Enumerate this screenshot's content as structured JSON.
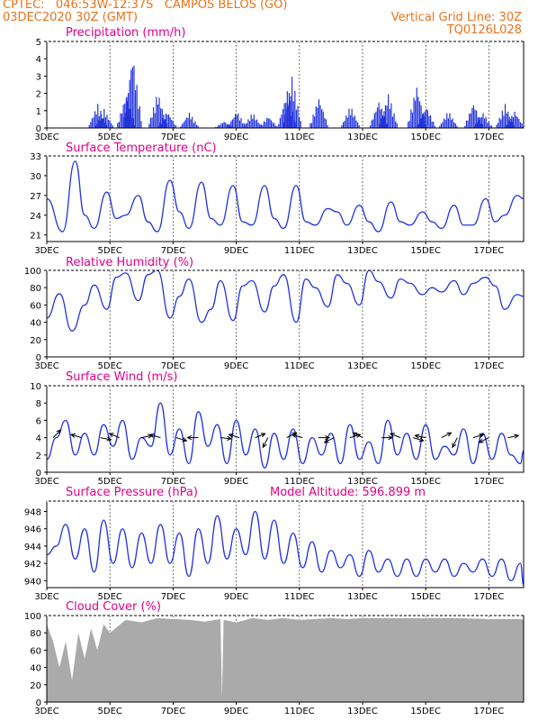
{
  "header": {
    "line1": "CPTEC:   046:53W-12:37S   CAMPOS BELOS (GO)",
    "line2_left": "03DEC2020 30Z (GMT)",
    "line2_right": "Vertical Grid Line: 30Z",
    "line3_right": "TQ0126L028"
  },
  "colors": {
    "header": "#e8731a",
    "title": "#e0008a",
    "line": "#2233dd",
    "cloud": "#aaaaaa"
  },
  "chart_data": [
    {
      "type": "bar",
      "title": "Precipitation (mm/h)",
      "ylim": [
        0,
        5
      ],
      "yticks": [
        "0",
        "1",
        "2",
        "3",
        "4",
        "5"
      ],
      "xticks": [
        "3DEC",
        "5DEC",
        "7DEC",
        "9DEC",
        "11DEC",
        "13DEC",
        "15DEC",
        "17DEC"
      ],
      "bursts": [
        {
          "day": 4.6,
          "peak": 1.4
        },
        {
          "day": 4.8,
          "peak": 1.1
        },
        {
          "day": 5.5,
          "peak": 2.0
        },
        {
          "day": 5.7,
          "peak": 4.4
        },
        {
          "day": 6.5,
          "peak": 2.1
        },
        {
          "day": 6.8,
          "peak": 1.0
        },
        {
          "day": 7.5,
          "peak": 0.9
        },
        {
          "day": 8.6,
          "peak": 0.4
        },
        {
          "day": 9.0,
          "peak": 1.0
        },
        {
          "day": 9.5,
          "peak": 0.9
        },
        {
          "day": 10.0,
          "peak": 0.7
        },
        {
          "day": 10.6,
          "peak": 2.2
        },
        {
          "day": 10.75,
          "peak": 3.0
        },
        {
          "day": 11.6,
          "peak": 1.8
        },
        {
          "day": 12.6,
          "peak": 1.3
        },
        {
          "day": 13.5,
          "peak": 1.6
        },
        {
          "day": 13.8,
          "peak": 2.0
        },
        {
          "day": 14.7,
          "peak": 2.5
        },
        {
          "day": 15.0,
          "peak": 1.3
        },
        {
          "day": 15.7,
          "peak": 1.0
        },
        {
          "day": 16.5,
          "peak": 1.5
        },
        {
          "day": 16.8,
          "peak": 0.9
        },
        {
          "day": 17.5,
          "peak": 1.4
        },
        {
          "day": 17.8,
          "peak": 1.0
        }
      ]
    },
    {
      "type": "line",
      "title": "Surface Temperature (nC)",
      "ylim": [
        20,
        33
      ],
      "yticks": [
        [
          "21",
          21
        ],
        [
          "24",
          24
        ],
        [
          "27",
          27
        ],
        [
          "30",
          30
        ],
        [
          "33",
          33
        ]
      ],
      "xticks": [
        "3DEC",
        "5DEC",
        "7DEC",
        "9DEC",
        "11DEC",
        "13DEC",
        "15DEC",
        "17DEC"
      ],
      "x": [
        3.0,
        3.5,
        3.9,
        4.2,
        4.5,
        4.9,
        5.2,
        5.5,
        5.9,
        6.2,
        6.5,
        6.9,
        7.2,
        7.5,
        7.9,
        8.2,
        8.5,
        8.9,
        9.2,
        9.5,
        9.9,
        10.2,
        10.5,
        10.9,
        11.2,
        11.5,
        11.9,
        12.2,
        12.5,
        12.9,
        13.2,
        13.5,
        13.9,
        14.2,
        14.5,
        14.9,
        15.2,
        15.5,
        15.9,
        16.2,
        16.5,
        16.9,
        17.2,
        17.5,
        17.9,
        18.1
      ],
      "values": [
        26.5,
        21.5,
        32.2,
        24.0,
        22.0,
        27.5,
        23.5,
        24.0,
        27.0,
        23.0,
        21.5,
        29.3,
        24.5,
        22.0,
        29.0,
        23.5,
        22.5,
        28.5,
        23.0,
        22.5,
        28.5,
        23.5,
        22.0,
        28.5,
        23.0,
        22.5,
        25.0,
        24.5,
        22.5,
        25.5,
        23.0,
        21.5,
        26.0,
        23.0,
        22.5,
        24.5,
        23.0,
        22.0,
        25.5,
        22.5,
        22.5,
        26.5,
        23.0,
        24.0,
        27.0,
        26.5
      ]
    },
    {
      "type": "line",
      "title": "Relative Humidity (%)",
      "ylim": [
        0,
        100
      ],
      "yticks": [
        [
          "0",
          0
        ],
        [
          "20",
          20
        ],
        [
          "40",
          40
        ],
        [
          "60",
          60
        ],
        [
          "80",
          80
        ],
        [
          "100",
          100
        ]
      ],
      "xticks": [
        "3DEC",
        "5DEC",
        "7DEC",
        "9DEC",
        "11DEC",
        "13DEC",
        "15DEC",
        "17DEC"
      ],
      "x": [
        3.0,
        3.4,
        3.8,
        4.2,
        4.5,
        4.9,
        5.2,
        5.5,
        5.9,
        6.2,
        6.5,
        6.9,
        7.2,
        7.5,
        7.9,
        8.2,
        8.5,
        8.9,
        9.2,
        9.5,
        9.9,
        10.2,
        10.5,
        10.9,
        11.2,
        11.5,
        11.9,
        12.2,
        12.5,
        12.9,
        13.2,
        13.5,
        13.9,
        14.2,
        14.5,
        14.9,
        15.2,
        15.5,
        15.9,
        16.2,
        16.5,
        16.9,
        17.2,
        17.5,
        17.9,
        18.1
      ],
      "values": [
        45,
        73,
        30,
        60,
        83,
        55,
        92,
        97,
        65,
        95,
        100,
        45,
        70,
        90,
        40,
        55,
        88,
        42,
        82,
        88,
        52,
        82,
        95,
        40,
        90,
        80,
        58,
        95,
        85,
        60,
        100,
        87,
        68,
        90,
        85,
        72,
        80,
        75,
        88,
        72,
        85,
        92,
        82,
        55,
        72,
        70
      ]
    },
    {
      "type": "line",
      "title": "Surface Wind (m/s)",
      "ylim": [
        0,
        10
      ],
      "yticks": [
        [
          "0",
          0
        ],
        [
          "2",
          2
        ],
        [
          "4",
          4
        ],
        [
          "6",
          6
        ],
        [
          "8",
          8
        ],
        [
          "10",
          10
        ]
      ],
      "xticks": [
        "3DEC",
        "5DEC",
        "7DEC",
        "9DEC",
        "11DEC",
        "13DEC",
        "15DEC",
        "17DEC"
      ],
      "x": [
        3.0,
        3.3,
        3.6,
        3.9,
        4.2,
        4.5,
        4.8,
        5.1,
        5.4,
        5.7,
        6.0,
        6.3,
        6.6,
        6.9,
        7.2,
        7.5,
        7.8,
        8.1,
        8.4,
        8.7,
        9.0,
        9.3,
        9.6,
        9.9,
        10.2,
        10.5,
        10.8,
        11.1,
        11.4,
        11.7,
        12.0,
        12.3,
        12.6,
        12.9,
        13.2,
        13.5,
        13.8,
        14.1,
        14.4,
        14.7,
        15.0,
        15.3,
        15.6,
        15.9,
        16.2,
        16.5,
        16.8,
        17.1,
        17.4,
        17.7,
        18.0,
        18.1
      ],
      "values": [
        1.5,
        4.0,
        6.0,
        2.0,
        4.5,
        2.0,
        5.5,
        3.0,
        6.0,
        1.5,
        4.0,
        3.0,
        8.0,
        2.0,
        5.0,
        1.0,
        7.0,
        3.0,
        5.5,
        1.0,
        6.0,
        2.0,
        5.0,
        0.5,
        4.5,
        1.5,
        5.0,
        1.0,
        4.0,
        2.0,
        4.5,
        1.0,
        5.5,
        1.5,
        3.5,
        1.0,
        6.0,
        2.0,
        4.5,
        1.5,
        5.5,
        1.5,
        3.0,
        2.0,
        5.0,
        1.0,
        4.5,
        1.5,
        4.5,
        2.0,
        1.0,
        2.5
      ],
      "arrows": [
        {
          "x": 3.2,
          "u": 1,
          "v": 1
        },
        {
          "x": 4.1,
          "u": -1,
          "v": 0.3
        },
        {
          "x": 4.7,
          "u": 1,
          "v": -0.2
        },
        {
          "x": 5.3,
          "u": -1,
          "v": 0.4
        },
        {
          "x": 6.0,
          "u": 1,
          "v": 0.2
        },
        {
          "x": 6.6,
          "u": -1,
          "v": 0.3
        },
        {
          "x": 7.1,
          "u": 1,
          "v": -0.3
        },
        {
          "x": 7.8,
          "u": -1,
          "v": 0
        },
        {
          "x": 8.5,
          "u": 1,
          "v": -0.1
        },
        {
          "x": 9.1,
          "u": -1,
          "v": 0.3
        },
        {
          "x": 9.6,
          "u": 1,
          "v": 0.4
        },
        {
          "x": 10.0,
          "u": -0.5,
          "v": -1
        },
        {
          "x": 10.6,
          "u": 1,
          "v": 0.5
        },
        {
          "x": 11.1,
          "u": -1,
          "v": 0.3
        },
        {
          "x": 11.6,
          "u": 1,
          "v": 0
        },
        {
          "x": 12.1,
          "u": -1,
          "v": -0.5
        },
        {
          "x": 12.6,
          "u": 1,
          "v": 0.3
        },
        {
          "x": 13.0,
          "u": -1,
          "v": 0.5
        },
        {
          "x": 13.6,
          "u": 1,
          "v": 0
        },
        {
          "x": 14.2,
          "u": -1,
          "v": 0.4
        },
        {
          "x": 14.6,
          "u": 1,
          "v": -0.3
        },
        {
          "x": 15.0,
          "u": -1,
          "v": 0.2
        },
        {
          "x": 15.5,
          "u": 1,
          "v": 0.5
        },
        {
          "x": 16.0,
          "u": -0.5,
          "v": -1
        },
        {
          "x": 16.5,
          "u": 1,
          "v": 0.3
        },
        {
          "x": 17.0,
          "u": -1,
          "v": -0.5
        },
        {
          "x": 17.6,
          "u": 1,
          "v": 0.2
        }
      ]
    },
    {
      "type": "line",
      "title": "Surface Pressure (hPa)",
      "subtitle": "Model Altitude: 596.899  m",
      "ylim": [
        939.2,
        949.2
      ],
      "yticks": [
        [
          "940",
          940
        ],
        [
          "942",
          942
        ],
        [
          "944",
          944
        ],
        [
          "946",
          946
        ],
        [
          "948",
          948
        ]
      ],
      "xticks": [
        "3DEC",
        "5DEC",
        "7DEC",
        "9DEC",
        "11DEC",
        "13DEC",
        "15DEC",
        "17DEC"
      ],
      "x": [
        3.0,
        3.3,
        3.6,
        3.9,
        4.2,
        4.5,
        4.8,
        5.1,
        5.4,
        5.7,
        6.0,
        6.3,
        6.6,
        6.9,
        7.2,
        7.5,
        7.8,
        8.1,
        8.4,
        8.7,
        9.0,
        9.3,
        9.6,
        9.9,
        10.2,
        10.5,
        10.8,
        11.1,
        11.4,
        11.7,
        12.0,
        12.3,
        12.6,
        12.9,
        13.2,
        13.5,
        13.8,
        14.1,
        14.4,
        14.7,
        15.0,
        15.3,
        15.6,
        15.9,
        16.2,
        16.5,
        16.8,
        17.1,
        17.4,
        17.7,
        18.0,
        18.1
      ],
      "values": [
        943.0,
        944.0,
        946.5,
        942.5,
        946.0,
        941.0,
        947.0,
        942.0,
        946.0,
        941.5,
        945.5,
        942.0,
        946.5,
        942.0,
        945.5,
        940.5,
        946.0,
        942.0,
        947.5,
        942.5,
        946.0,
        943.0,
        948.0,
        942.5,
        947.0,
        942.0,
        945.5,
        941.5,
        944.5,
        941.0,
        943.5,
        941.5,
        943.0,
        940.5,
        943.5,
        941.0,
        942.5,
        940.5,
        942.5,
        940.5,
        942.5,
        941.0,
        942.5,
        940.5,
        942.0,
        941.0,
        942.5,
        940.5,
        942.5,
        940.0,
        942.0,
        939.5
      ]
    },
    {
      "type": "area",
      "title": "Cloud Cover (%)",
      "ylim": [
        0,
        100
      ],
      "yticks": [
        [
          "0",
          0
        ],
        [
          "20",
          20
        ],
        [
          "40",
          40
        ],
        [
          "60",
          60
        ],
        [
          "80",
          80
        ],
        [
          "100",
          100
        ]
      ],
      "xticks": [
        "3DEC",
        "5DEC",
        "7DEC",
        "9DEC",
        "11DEC",
        "13DEC",
        "15DEC",
        "17DEC"
      ],
      "x": [
        3.0,
        3.2,
        3.4,
        3.6,
        3.8,
        4.0,
        4.2,
        4.4,
        4.6,
        4.8,
        5.0,
        5.5,
        6.0,
        6.5,
        7.0,
        7.5,
        8.0,
        8.5,
        8.55,
        8.6,
        9.0,
        9.5,
        10.0,
        10.5,
        11.0,
        11.5,
        12.0,
        12.5,
        13.0,
        14.0,
        15.0,
        16.0,
        17.0,
        18.0,
        18.1
      ],
      "values": [
        90,
        70,
        40,
        70,
        25,
        80,
        50,
        85,
        60,
        90,
        80,
        95,
        92,
        97,
        96,
        95,
        93,
        96,
        5,
        95,
        92,
        97,
        95,
        97,
        95,
        96,
        97,
        96,
        97,
        97,
        97,
        97,
        96,
        96,
        95
      ]
    }
  ]
}
